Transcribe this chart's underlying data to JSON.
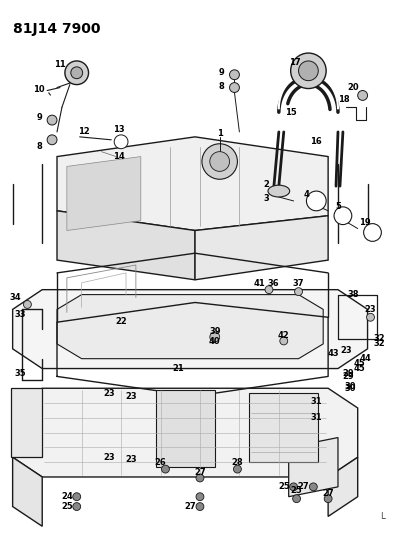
{
  "title": "81J14 7900",
  "background_color": "#ffffff",
  "line_color": "#1a1a1a",
  "label_color": "#000000",
  "fig_width": 3.94,
  "fig_height": 5.33,
  "dpi": 100,
  "title_fontsize": 10,
  "label_fontsize": 6.0
}
